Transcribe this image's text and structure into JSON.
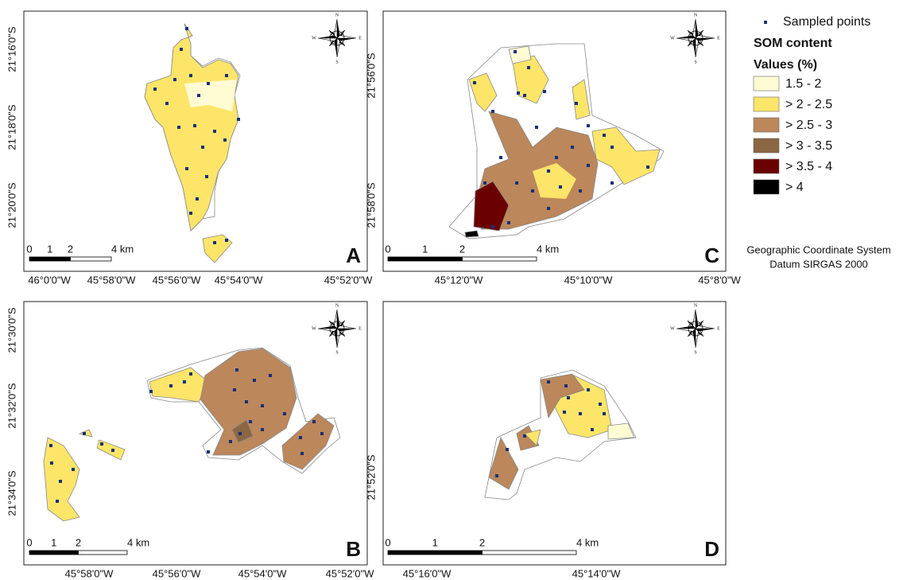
{
  "panels": [
    {
      "letter": "A",
      "x_labels": [
        "46°0'0\"W",
        "45°58'0\"W",
        "45°56'0\"W",
        "45°54'0\"W",
        "45°52'0\"W"
      ],
      "y_labels": [
        "21°16'0\"S",
        "21°18'0\"S",
        "21°20'0\"S"
      ],
      "scale": [
        "0",
        "1",
        "2",
        "4 km"
      ]
    },
    {
      "letter": "B",
      "x_labels": [
        "45°58'0\"W",
        "45°56'0\"W",
        "45°54'0\"W",
        "45°52'0\"W"
      ],
      "y_labels": [
        "21°30'0\"S",
        "21°32'0\"S",
        "21°34'0\"S"
      ],
      "scale": [
        "0",
        "1",
        "2",
        "4 km"
      ]
    },
    {
      "letter": "C",
      "x_labels": [
        "45°12'0\"W",
        "45°10'0\"W",
        "45°8'0\"W"
      ],
      "y_labels": [
        "21°56'0\"S",
        "21°58'0\"S"
      ],
      "scale": [
        "0",
        "1",
        "2",
        "4 km"
      ]
    },
    {
      "letter": "D",
      "x_labels": [
        "45°16'0\"W",
        "45°14'0\"W"
      ],
      "y_labels": [
        "21°52'0\"S"
      ],
      "scale": [
        "0",
        "1",
        "2",
        "4 km"
      ]
    }
  ],
  "compass": {
    "n": "N",
    "e": "E",
    "s": "S",
    "w": "W"
  },
  "legend": {
    "points": "Sampled points",
    "point_color": "#1a2f7a",
    "title": "SOM content",
    "subtitle": "Values (%)",
    "classes": [
      {
        "label": "1.5 - 2",
        "color": "#fffbd3"
      },
      {
        "label": "> 2 - 2.5",
        "color": "#fde569"
      },
      {
        "label": "> 2.5 - 3",
        "color": "#bb875b"
      },
      {
        "label": "> 3 - 3.5",
        "color": "#8a6642"
      },
      {
        "label": "> 3.5 - 4",
        "color": "#6b0000"
      },
      {
        "label": "> 4",
        "color": "#000000"
      }
    ]
  },
  "crs": [
    "Geographic Coordinate System",
    "Datum SIRGAS 2000"
  ]
}
